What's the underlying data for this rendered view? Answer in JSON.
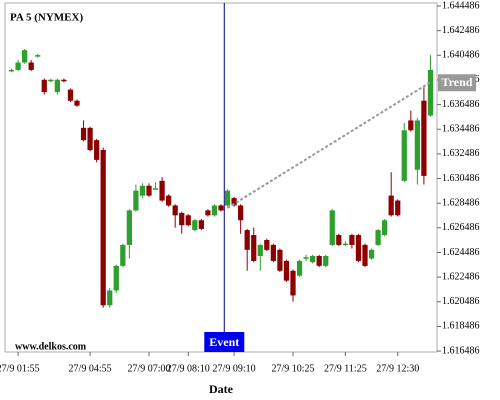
{
  "chart_data": {
    "type": "candlestick",
    "title": "PA 5 (NYMEX)",
    "watermark": "www.delkos.com",
    "x_label": "Date",
    "up_color": "#2e9e2e",
    "down_color": "#8b0000",
    "open": [
      1.6392,
      1.6393,
      1.6399,
      1.6399,
      1.6404,
      1.6385,
      1.6384,
      1.6375,
      1.6385,
      1.6377,
      1.6368,
      1.6346,
      1.6346,
      1.6336,
      1.6328,
      1.6202,
      1.6214,
      1.6234,
      1.6251,
      1.6279,
      1.6291,
      1.6299,
      1.6297,
      1.6303,
      1.6291,
      1.6283,
      1.6277,
      1.6275,
      1.6263,
      1.6271,
      1.6279,
      1.6275,
      1.6283,
      1.6283,
      1.6289,
      1.6283,
      1.6263,
      1.6259,
      1.6242,
      1.6255,
      1.6251,
      1.6247,
      1.6238,
      1.623,
      1.6226,
      1.624,
      1.6237,
      1.6242,
      1.6234,
      1.6251,
      1.6259,
      1.6251,
      1.6259,
      1.6259,
      1.6251,
      1.624,
      1.6251,
      1.6259,
      1.6291,
      1.6287,
      1.6303,
      1.6352,
      1.6312,
      1.6368,
      1.6356
    ],
    "high": [
      1.6394,
      1.6401,
      1.641,
      1.6401,
      1.6406,
      1.6386,
      1.6386,
      1.6386,
      1.6386,
      1.6378,
      1.6369,
      1.6352,
      1.6347,
      1.6337,
      1.633,
      1.6216,
      1.6235,
      1.6252,
      1.628,
      1.63,
      1.6301,
      1.6301,
      1.6302,
      1.6306,
      1.6292,
      1.6284,
      1.6278,
      1.6276,
      1.6272,
      1.6272,
      1.628,
      1.6284,
      1.6284,
      1.6296,
      1.629,
      1.6284,
      1.6264,
      1.6265,
      1.6252,
      1.6256,
      1.6252,
      1.6248,
      1.6239,
      1.6231,
      1.6239,
      1.6243,
      1.6243,
      1.6243,
      1.6243,
      1.628,
      1.626,
      1.6254,
      1.626,
      1.626,
      1.6252,
      1.6248,
      1.6264,
      1.6272,
      1.631,
      1.6288,
      1.635,
      1.636,
      1.6354,
      1.638,
      1.6405
    ],
    "low": [
      1.6391,
      1.6392,
      1.6398,
      1.6392,
      1.6403,
      1.6373,
      1.6383,
      1.6373,
      1.6383,
      1.6367,
      1.6363,
      1.6335,
      1.6327,
      1.6318,
      1.62,
      1.62,
      1.6212,
      1.6233,
      1.624,
      1.6278,
      1.6289,
      1.629,
      1.6296,
      1.6286,
      1.6282,
      1.6265,
      1.626,
      1.6266,
      1.6262,
      1.6263,
      1.6274,
      1.6274,
      1.6278,
      1.6282,
      1.6282,
      1.626,
      1.623,
      1.6237,
      1.623,
      1.6246,
      1.6237,
      1.6229,
      1.6221,
      1.6205,
      1.6225,
      1.6238,
      1.6236,
      1.6233,
      1.6233,
      1.625,
      1.625,
      1.625,
      1.6248,
      1.6237,
      1.6233,
      1.6239,
      1.625,
      1.6258,
      1.6274,
      1.6274,
      1.6302,
      1.6343,
      1.63,
      1.63,
      1.6355
    ],
    "close": [
      1.6393,
      1.6399,
      1.6409,
      1.6393,
      1.6405,
      1.6375,
      1.6385,
      1.6385,
      1.6384,
      1.6368,
      1.6364,
      1.6336,
      1.6328,
      1.632,
      1.6202,
      1.6214,
      1.6234,
      1.6251,
      1.6279,
      1.6295,
      1.6299,
      1.6291,
      1.6297,
      1.6287,
      1.6283,
      1.6275,
      1.6267,
      1.6267,
      1.6271,
      1.6264,
      1.6275,
      1.6283,
      1.6279,
      1.6295,
      1.6283,
      1.6271,
      1.6247,
      1.6238,
      1.6251,
      1.6247,
      1.6238,
      1.623,
      1.6222,
      1.621,
      1.6238,
      1.6241,
      1.6242,
      1.6234,
      1.6242,
      1.6279,
      1.6251,
      1.6252,
      1.6251,
      1.6238,
      1.6234,
      1.6247,
      1.6263,
      1.6271,
      1.6275,
      1.6275,
      1.6344,
      1.6344,
      1.6352,
      1.6307,
      1.6393
    ],
    "xlim": [
      -1,
      65
    ],
    "xticks": [
      {
        "value": 1,
        "label": "27/9 01:55"
      },
      {
        "value": 12,
        "label": "27/9 04:55"
      },
      {
        "value": 21,
        "label": "27/9 07:00"
      },
      {
        "value": 27,
        "label": "27/9 08:10"
      },
      {
        "value": 34,
        "label": "27/9 09:10"
      },
      {
        "value": 43,
        "label": "27/9 10:25"
      },
      {
        "value": 51,
        "label": "27/9 11:25"
      },
      {
        "value": 59,
        "label": "27/9 12:30"
      }
    ],
    "ylim": [
      1.61641,
      1.64473
    ],
    "yticks": [
      1.616486,
      1.618486,
      1.620486,
      1.622486,
      1.624486,
      1.626486,
      1.628486,
      1.630486,
      1.632486,
      1.634486,
      1.636486,
      1.638486,
      1.640486,
      1.642486,
      1.644486
    ],
    "event": {
      "label": "Event",
      "x": 32.5
    },
    "trend": {
      "label": "Trend",
      "x": [
        33,
        64
      ],
      "y": [
        1.6281,
        1.6383
      ]
    }
  }
}
